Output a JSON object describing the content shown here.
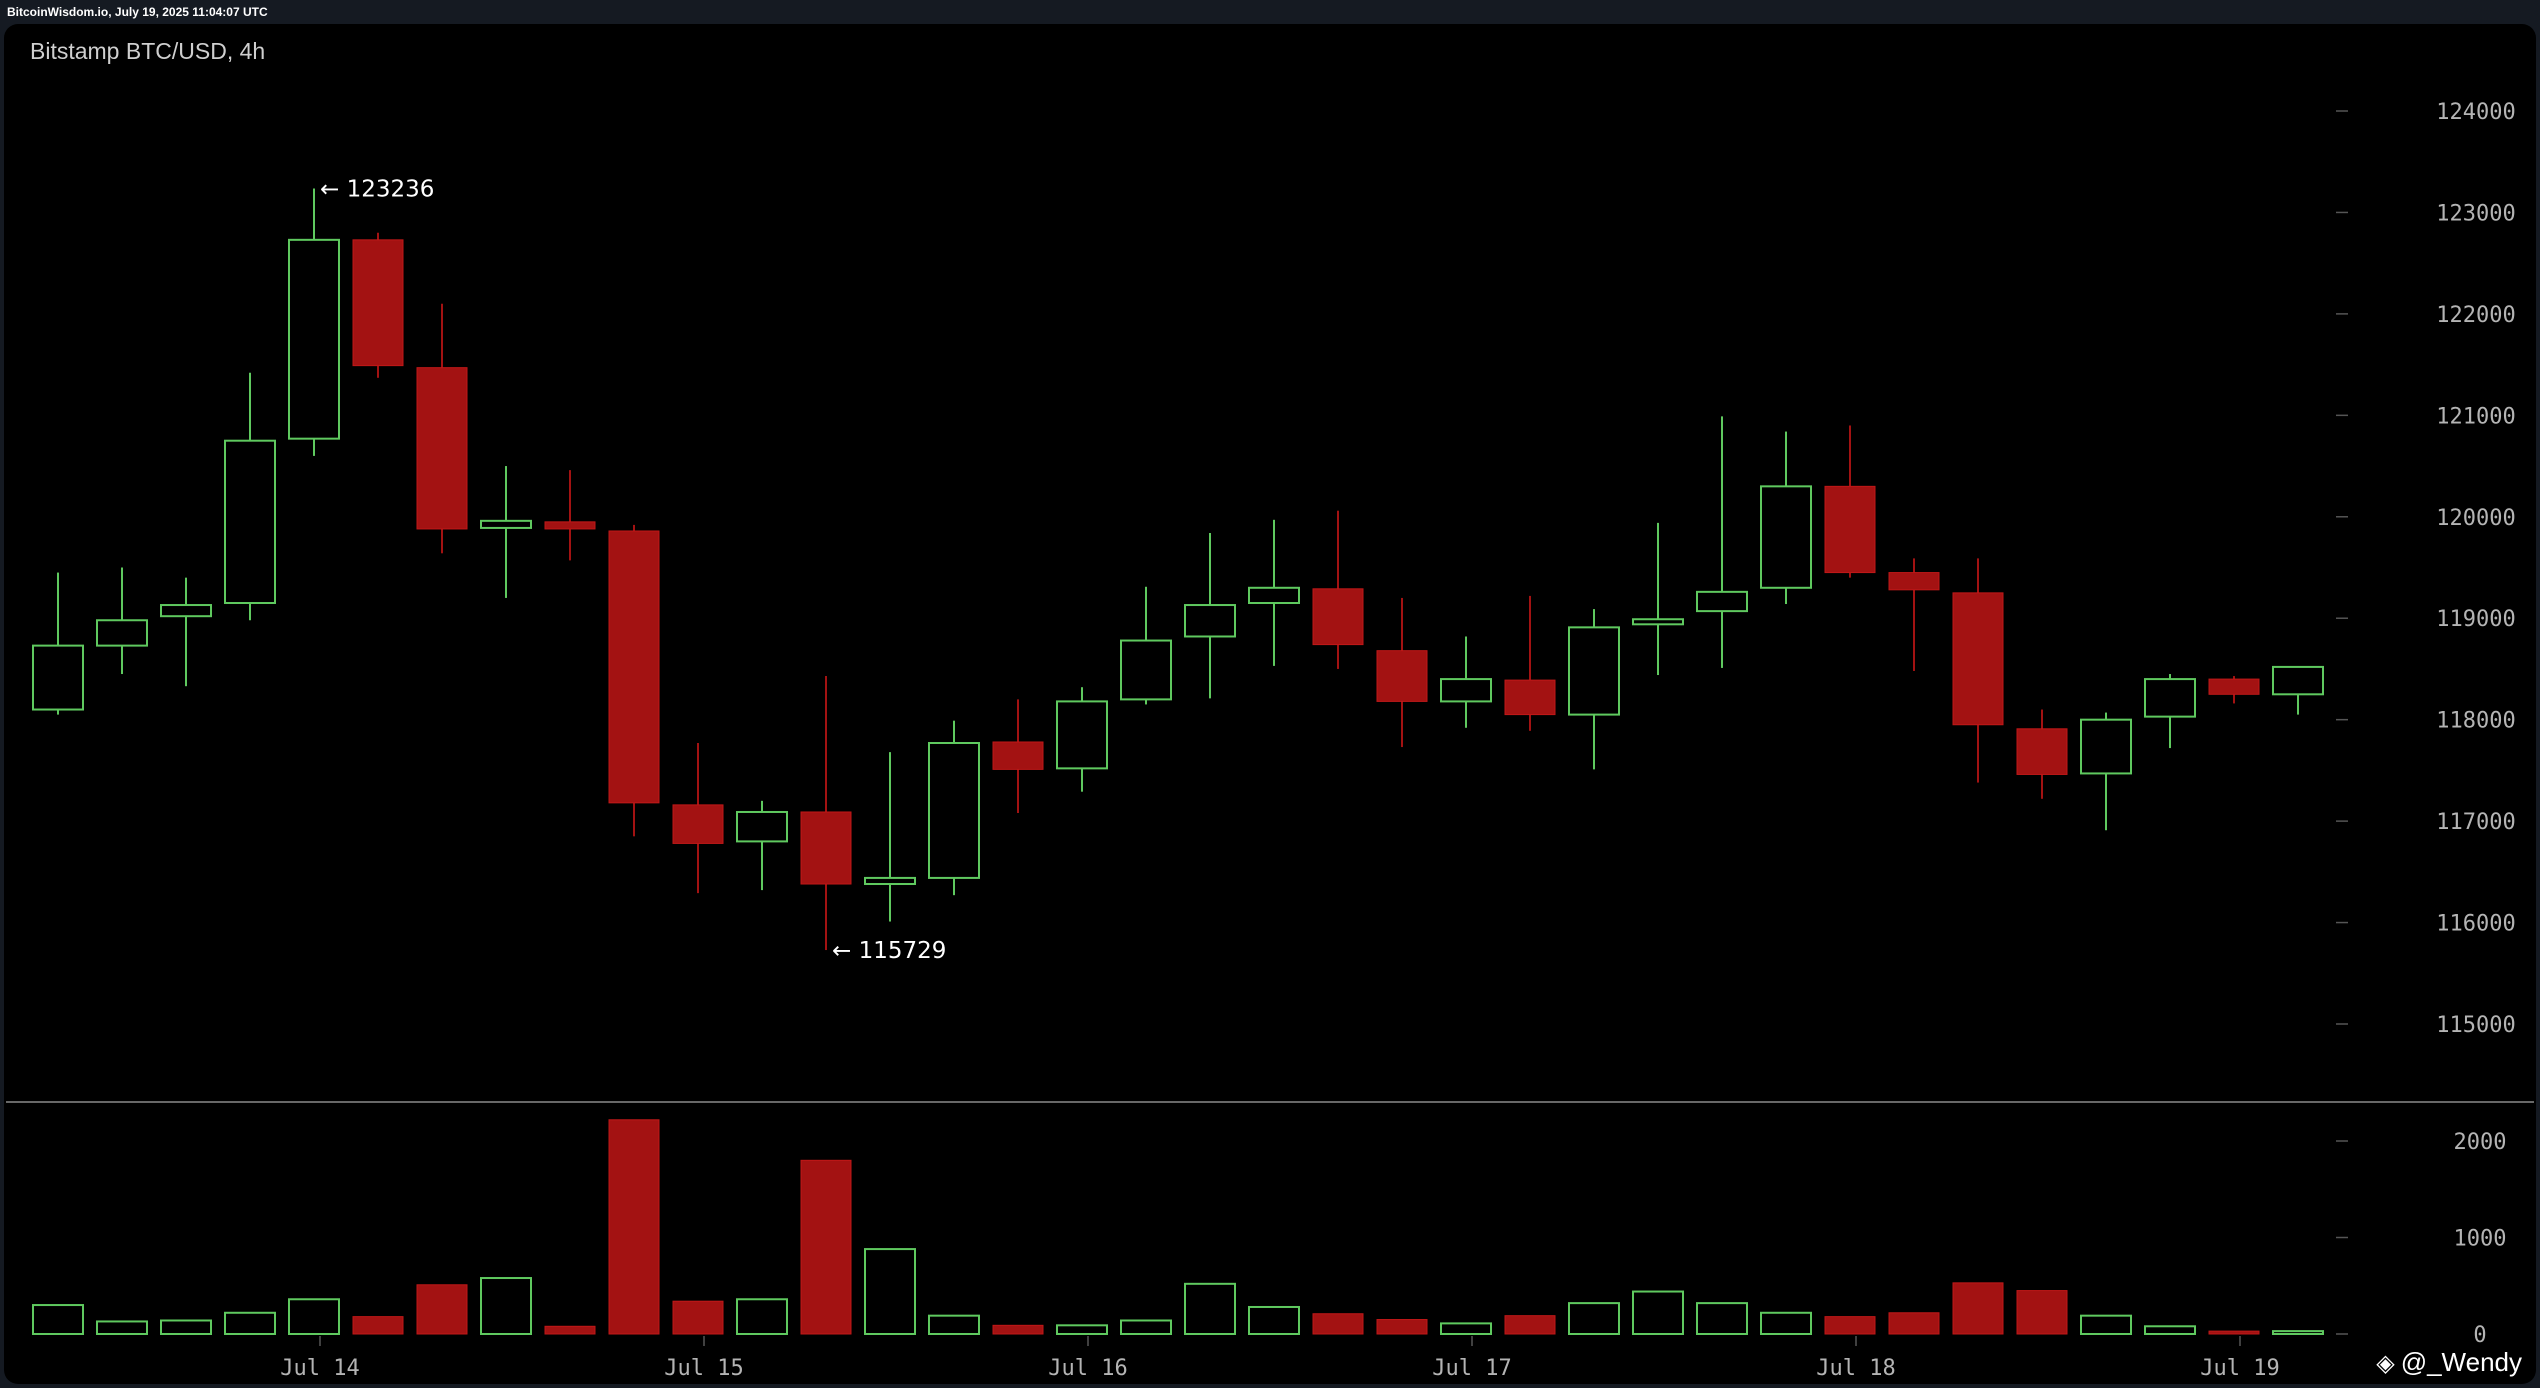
{
  "header": {
    "source_line": "BitcoinWisdom.io, July 19, 2025 11:04:07 UTC",
    "title": "Bitstamp BTC/USD, 4h",
    "watermark": "@_Wendy"
  },
  "colors": {
    "up": "#5fc95f",
    "down": "#a31212",
    "axis_text": "#b4b4b4",
    "background": "#000000"
  },
  "chart_data": [
    {
      "type": "candlestick",
      "title": "Bitstamp BTC/USD, 4h",
      "ylim": [
        114500,
        124500
      ],
      "y_ticks": [
        124000,
        123000,
        122000,
        121000,
        120000,
        119000,
        118000,
        117000,
        116000,
        115000
      ],
      "x_ticks": [
        "Jul 14",
        "Jul 15",
        "Jul 16",
        "Jul 17",
        "Jul 18",
        "Jul 19"
      ],
      "grid": false,
      "annotations": [
        {
          "label": "← 123236",
          "value": 123236,
          "candle": 4
        },
        {
          "label": "← 115729",
          "value": 115729,
          "candle": 12
        }
      ],
      "candles": [
        {
          "open": 118100,
          "high": 119450,
          "low": 118050,
          "close": 118730
        },
        {
          "open": 118730,
          "high": 119500,
          "low": 118450,
          "close": 118980
        },
        {
          "open": 119020,
          "high": 119400,
          "low": 118330,
          "close": 119130
        },
        {
          "open": 119150,
          "high": 121420,
          "low": 118980,
          "close": 120750
        },
        {
          "open": 120770,
          "high": 123236,
          "low": 120600,
          "close": 122730
        },
        {
          "open": 122730,
          "high": 122800,
          "low": 121370,
          "close": 121490
        },
        {
          "open": 121470,
          "high": 122100,
          "low": 119640,
          "close": 119880
        },
        {
          "open": 119890,
          "high": 120500,
          "low": 119200,
          "close": 119960
        },
        {
          "open": 119950,
          "high": 120460,
          "low": 119570,
          "close": 119880
        },
        {
          "open": 119860,
          "high": 119920,
          "low": 116850,
          "close": 117180
        },
        {
          "open": 117160,
          "high": 117770,
          "low": 116290,
          "close": 116780
        },
        {
          "open": 116800,
          "high": 117200,
          "low": 116320,
          "close": 117090
        },
        {
          "open": 117090,
          "high": 118430,
          "low": 115729,
          "close": 116380
        },
        {
          "open": 116380,
          "high": 117680,
          "low": 116010,
          "close": 116440
        },
        {
          "open": 116440,
          "high": 117990,
          "low": 116270,
          "close": 117770
        },
        {
          "open": 117780,
          "high": 118200,
          "low": 117080,
          "close": 117510
        },
        {
          "open": 117520,
          "high": 118320,
          "low": 117290,
          "close": 118180
        },
        {
          "open": 118200,
          "high": 119310,
          "low": 118150,
          "close": 118780
        },
        {
          "open": 118820,
          "high": 119840,
          "low": 118210,
          "close": 119130
        },
        {
          "open": 119150,
          "high": 119970,
          "low": 118530,
          "close": 119300
        },
        {
          "open": 119290,
          "high": 120060,
          "low": 118500,
          "close": 118740
        },
        {
          "open": 118680,
          "high": 119200,
          "low": 117730,
          "close": 118180
        },
        {
          "open": 118180,
          "high": 118820,
          "low": 117920,
          "close": 118400
        },
        {
          "open": 118390,
          "high": 119220,
          "low": 117890,
          "close": 118050
        },
        {
          "open": 118050,
          "high": 119090,
          "low": 117510,
          "close": 118910
        },
        {
          "open": 118940,
          "high": 119940,
          "low": 118440,
          "close": 118990
        },
        {
          "open": 119070,
          "high": 120990,
          "low": 118510,
          "close": 119260
        },
        {
          "open": 119300,
          "high": 120840,
          "low": 119140,
          "close": 120300
        },
        {
          "open": 120300,
          "high": 120900,
          "low": 119400,
          "close": 119450
        },
        {
          "open": 119450,
          "high": 119590,
          "low": 118480,
          "close": 119280
        },
        {
          "open": 119250,
          "high": 119590,
          "low": 117380,
          "close": 117950
        },
        {
          "open": 117910,
          "high": 118100,
          "low": 117220,
          "close": 117460
        },
        {
          "open": 117470,
          "high": 118070,
          "low": 116910,
          "close": 118000
        },
        {
          "open": 118030,
          "high": 118450,
          "low": 117720,
          "close": 118400
        },
        {
          "open": 118400,
          "high": 118430,
          "low": 118160,
          "close": 118250
        },
        {
          "open": 118250,
          "high": 118520,
          "low": 118050,
          "close": 118520
        }
      ]
    },
    {
      "type": "bar",
      "title": "",
      "ylabel": "",
      "ylim": [
        0,
        2400
      ],
      "y_ticks": [
        2000,
        1000,
        0
      ],
      "values": [
        300,
        130,
        140,
        220,
        360,
        180,
        510,
        580,
        80,
        2220,
        340,
        360,
        1800,
        880,
        190,
        90,
        90,
        140,
        520,
        280,
        210,
        150,
        110,
        190,
        320,
        440,
        320,
        220,
        180,
        220,
        530,
        450,
        190,
        80,
        30,
        30
      ],
      "directions": [
        "up",
        "up",
        "up",
        "up",
        "up",
        "down",
        "down",
        "up",
        "down",
        "down",
        "down",
        "up",
        "down",
        "up",
        "up",
        "down",
        "up",
        "up",
        "up",
        "up",
        "down",
        "down",
        "up",
        "down",
        "up",
        "up",
        "up",
        "up",
        "down",
        "down",
        "down",
        "down",
        "up",
        "up",
        "down",
        "up"
      ]
    }
  ]
}
